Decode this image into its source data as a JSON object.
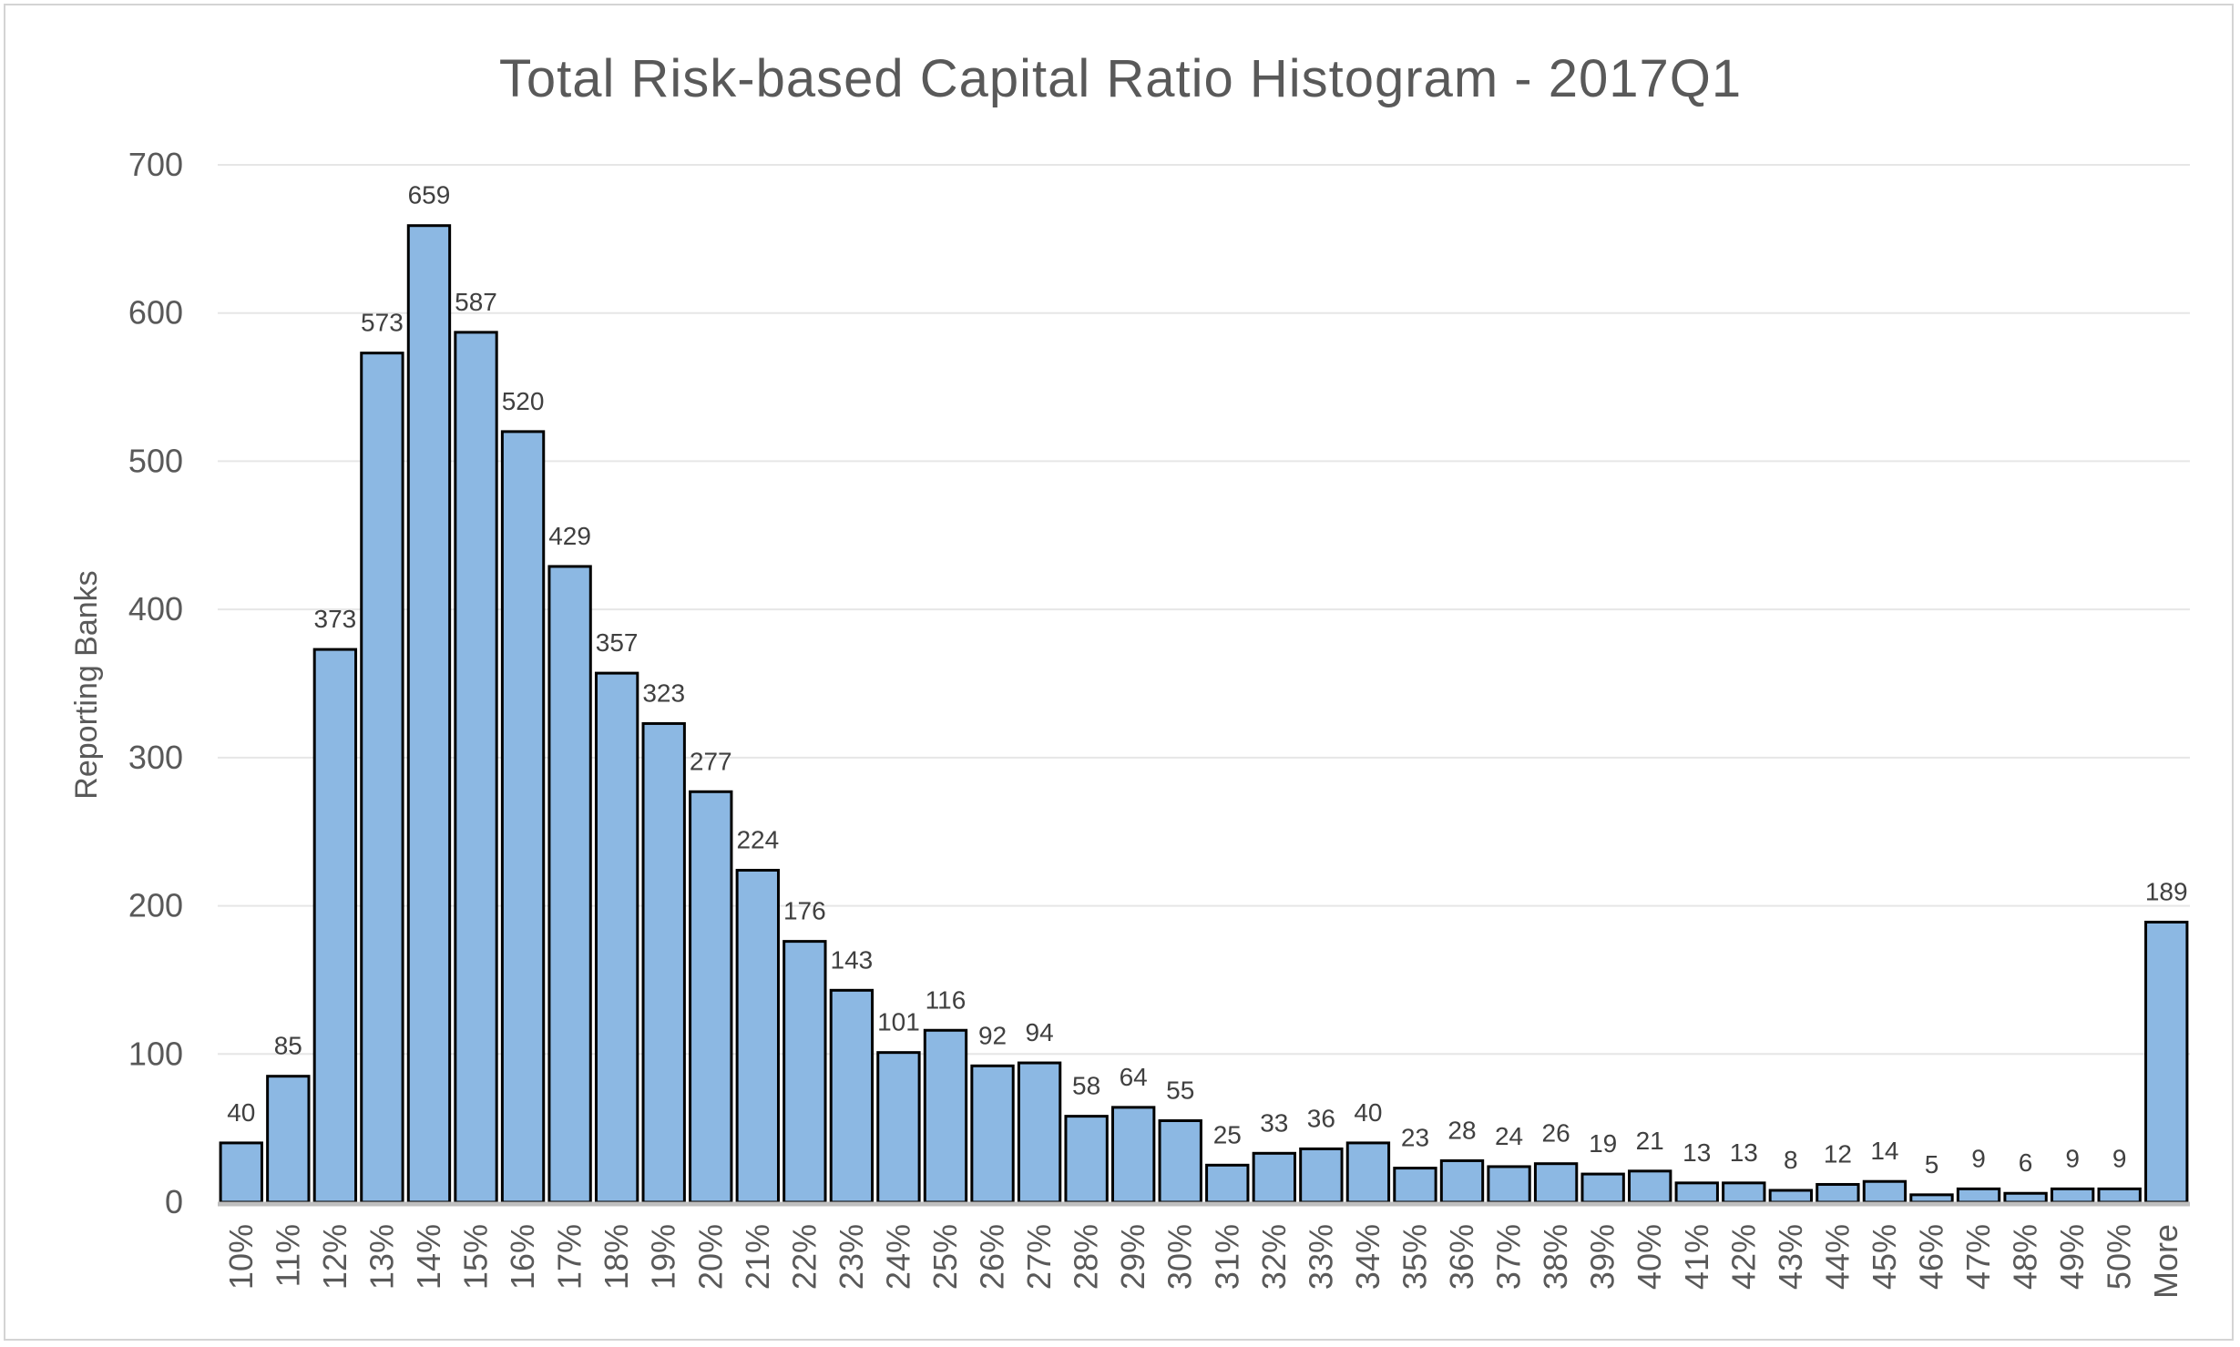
{
  "chart_data": {
    "type": "bar",
    "title": "Total Risk-based Capital Ratio Histogram - 2017Q1",
    "ylabel": "Reporting Banks",
    "xlabel": "",
    "ylim": [
      0,
      700
    ],
    "yticks": [
      "0",
      "100",
      "200",
      "300",
      "400",
      "500",
      "600",
      "700"
    ],
    "grid": true,
    "bar_color": "#8cb8e3",
    "categories": [
      "10%",
      "11%",
      "12%",
      "13%",
      "14%",
      "15%",
      "16%",
      "17%",
      "18%",
      "19%",
      "20%",
      "21%",
      "22%",
      "23%",
      "24%",
      "25%",
      "26%",
      "27%",
      "28%",
      "29%",
      "30%",
      "31%",
      "32%",
      "33%",
      "34%",
      "35%",
      "36%",
      "37%",
      "38%",
      "39%",
      "40%",
      "41%",
      "42%",
      "43%",
      "44%",
      "45%",
      "46%",
      "47%",
      "48%",
      "49%",
      "50%",
      "More"
    ],
    "values": [
      40,
      85,
      373,
      573,
      659,
      587,
      520,
      429,
      357,
      323,
      277,
      224,
      176,
      143,
      101,
      116,
      92,
      94,
      58,
      64,
      55,
      25,
      33,
      36,
      40,
      23,
      28,
      24,
      26,
      19,
      21,
      13,
      13,
      8,
      12,
      14,
      5,
      9,
      6,
      9,
      9,
      189
    ]
  }
}
